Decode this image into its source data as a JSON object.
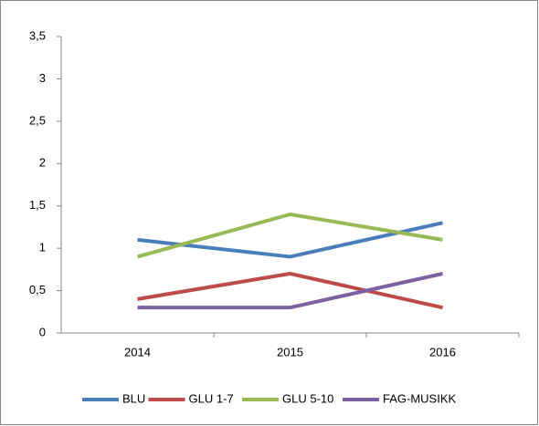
{
  "chart_data": {
    "type": "line",
    "categories": [
      "2014",
      "2015",
      "2016"
    ],
    "series": [
      {
        "name": "BLU",
        "color": "#4a7ebb",
        "values": [
          1.1,
          0.9,
          1.3
        ]
      },
      {
        "name": "GLU 1-7",
        "color": "#be4b48",
        "values": [
          0.4,
          0.7,
          0.3
        ]
      },
      {
        "name": "GLU 5-10",
        "color": "#98b954",
        "values": [
          0.9,
          1.4,
          1.1
        ]
      },
      {
        "name": "FAG-MUSIKK",
        "color": "#7d60a0",
        "values": [
          0.3,
          0.3,
          0.7
        ]
      }
    ],
    "ylim": [
      0,
      3.5
    ],
    "yticks": [
      0,
      {
        "value": 0.5,
        "label": "0,5"
      },
      1,
      {
        "value": 1.5,
        "label": "1,5"
      },
      2,
      {
        "value": 2.5,
        "label": "2,5"
      },
      3,
      {
        "value": 3.5,
        "label": "3,5"
      }
    ],
    "legend": "bottom"
  }
}
